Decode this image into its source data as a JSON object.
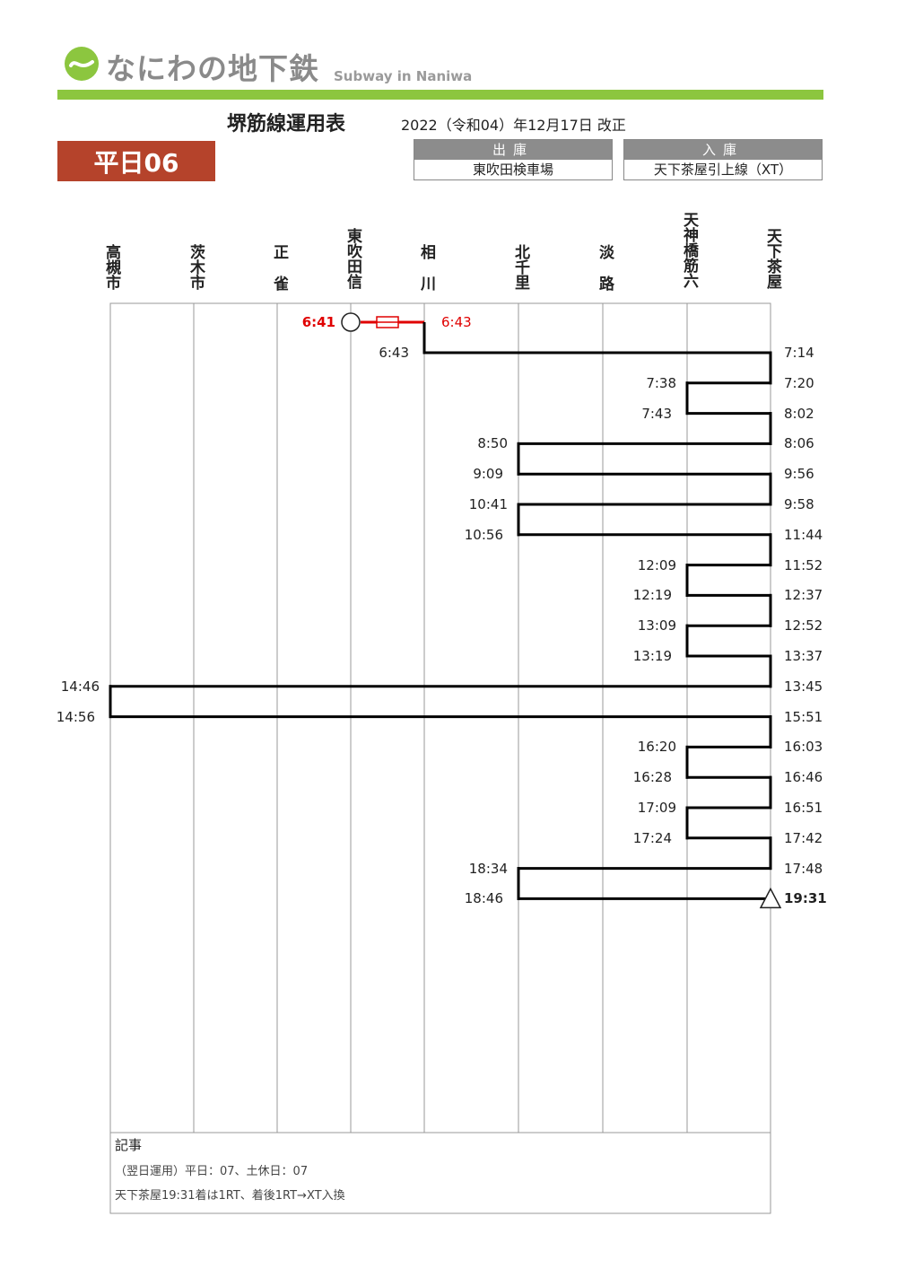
{
  "header": {
    "logo_text": "なにわの地下鉄",
    "logo_subtitle": "Subway in Naniwa",
    "title": "堺筋線運用表",
    "revision": "2022（令和04）年12月17日 改正",
    "operation_badge": "平日06",
    "brand_color": "#8cc63f",
    "badge_color": "#b5432b"
  },
  "depot": {
    "departure_label": "出庫",
    "departure_value": "東吹田検車場",
    "arrival_label": "入庫",
    "arrival_value": "天下茶屋引上線（XT）"
  },
  "stations": [
    "高槻市",
    "茨木市",
    "正雀",
    "東吹田信",
    "相川",
    "北千里",
    "淡路",
    "天神橋筋六",
    "天下茶屋"
  ],
  "diagram": {
    "line_color": "#000000",
    "depot_color": "#e00000",
    "depot_departure_time": "6:41",
    "depot_arrival_time": "6:43",
    "depot_departure_station": "東吹田信",
    "trips": [
      {
        "from": "相川",
        "dep": "6:43",
        "to": "天下茶屋",
        "arr": "7:14"
      },
      {
        "from": "天下茶屋",
        "dep": "7:20",
        "to": "天神橋筋六",
        "arr": "7:38"
      },
      {
        "from": "天神橋筋六",
        "dep": "7:43",
        "to": "天下茶屋",
        "arr": "8:02"
      },
      {
        "from": "天下茶屋",
        "dep": "8:06",
        "to": "北千里",
        "arr": "8:50"
      },
      {
        "from": "北千里",
        "dep": "9:09",
        "to": "天下茶屋",
        "arr": "9:56"
      },
      {
        "from": "天下茶屋",
        "dep": "9:58",
        "to": "北千里",
        "arr": "10:41"
      },
      {
        "from": "北千里",
        "dep": "10:56",
        "to": "天下茶屋",
        "arr": "11:44"
      },
      {
        "from": "天下茶屋",
        "dep": "11:52",
        "to": "天神橋筋六",
        "arr": "12:09"
      },
      {
        "from": "天神橋筋六",
        "dep": "12:19",
        "to": "天下茶屋",
        "arr": "12:37"
      },
      {
        "from": "天下茶屋",
        "dep": "12:52",
        "to": "天神橋筋六",
        "arr": "13:09"
      },
      {
        "from": "天神橋筋六",
        "dep": "13:19",
        "to": "天下茶屋",
        "arr": "13:37"
      },
      {
        "from": "天下茶屋",
        "dep": "13:45",
        "to": "高槻市",
        "arr": "14:46"
      },
      {
        "from": "高槻市",
        "dep": "14:56",
        "to": "天下茶屋",
        "arr": "15:51"
      },
      {
        "from": "天下茶屋",
        "dep": "16:03",
        "to": "天神橋筋六",
        "arr": "16:20"
      },
      {
        "from": "天神橋筋六",
        "dep": "16:28",
        "to": "天下茶屋",
        "arr": "16:46"
      },
      {
        "from": "天下茶屋",
        "dep": "16:51",
        "to": "天神橋筋六",
        "arr": "17:09"
      },
      {
        "from": "天神橋筋六",
        "dep": "17:24",
        "to": "天下茶屋",
        "arr": "17:42"
      },
      {
        "from": "天下茶屋",
        "dep": "17:48",
        "to": "北千里",
        "arr": "18:34"
      },
      {
        "from": "北千里",
        "dep": "18:46",
        "to": "天下茶屋",
        "arr": "19:31"
      }
    ],
    "final_arrival_time": "19:31"
  },
  "notes": {
    "title": "記事",
    "lines": [
      "（翌日運用）平日：07、土休日：07",
      "天下茶屋19:31着は1RT、着後1RT→XT入換"
    ]
  }
}
